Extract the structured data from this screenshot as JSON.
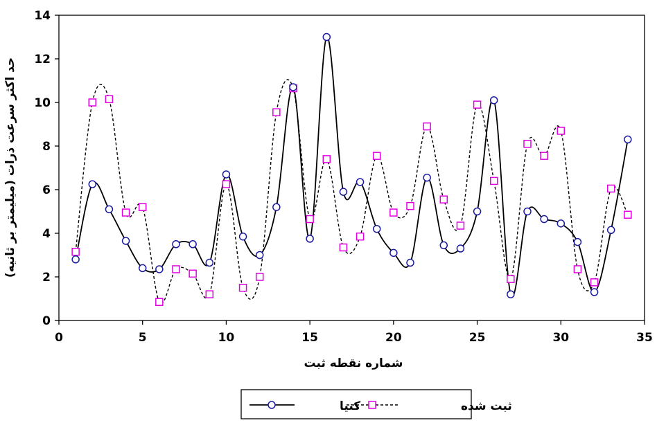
{
  "chart_data": {
    "type": "line",
    "xlabel": "شماره نقطه ثبت",
    "ylabel": "حد اکثر سرعت ذرات (میلیمتر بر ثانیه)",
    "xlim": [
      0,
      35
    ],
    "ylim": [
      0,
      14
    ],
    "xticks": [
      "0",
      "5",
      "10",
      "15",
      "20",
      "25",
      "30",
      "35"
    ],
    "yticks": [
      "0",
      "2",
      "4",
      "6",
      "8",
      "10",
      "12",
      "14"
    ],
    "grid": false,
    "legend_position": "bottom",
    "series": [
      {
        "name": "کنیا",
        "color": "#000000",
        "line_style": "solid",
        "marker": "circle",
        "marker_color": "#1a1aa0",
        "x": [
          1,
          2,
          3,
          4,
          5,
          6,
          7,
          8,
          9,
          10,
          11,
          12,
          13,
          14,
          15,
          16,
          17,
          18,
          19,
          20,
          21,
          22,
          23,
          24,
          25,
          26,
          27,
          28,
          29,
          30,
          31,
          32,
          33,
          34
        ],
        "values": [
          2.8,
          6.25,
          5.1,
          3.65,
          2.4,
          2.35,
          3.5,
          3.5,
          2.65,
          6.7,
          3.85,
          3.0,
          5.2,
          10.7,
          3.75,
          13.0,
          5.9,
          6.35,
          4.2,
          3.1,
          2.65,
          6.55,
          3.45,
          3.3,
          5.0,
          10.1,
          1.2,
          5.0,
          4.65,
          4.45,
          3.6,
          1.3,
          4.15,
          8.3
        ]
      },
      {
        "name": "ثبت شده",
        "color": "#000000",
        "line_style": "dashed",
        "marker": "square",
        "marker_color": "#e000e0",
        "x": [
          1,
          2,
          3,
          4,
          5,
          6,
          7,
          8,
          9,
          10,
          11,
          12,
          13,
          14,
          15,
          16,
          17,
          18,
          19,
          20,
          21,
          22,
          23,
          24,
          25,
          26,
          27,
          28,
          29,
          30,
          31,
          32,
          33,
          34
        ],
        "values": [
          3.15,
          10.0,
          10.15,
          4.95,
          5.2,
          0.85,
          2.35,
          2.15,
          1.2,
          6.25,
          1.5,
          2.0,
          9.55,
          10.65,
          4.65,
          7.4,
          3.35,
          3.85,
          7.55,
          4.95,
          5.25,
          8.9,
          5.55,
          4.35,
          9.9,
          6.4,
          1.9,
          8.1,
          7.55,
          8.7,
          2.35,
          1.75,
          6.05,
          4.85
        ]
      }
    ]
  }
}
